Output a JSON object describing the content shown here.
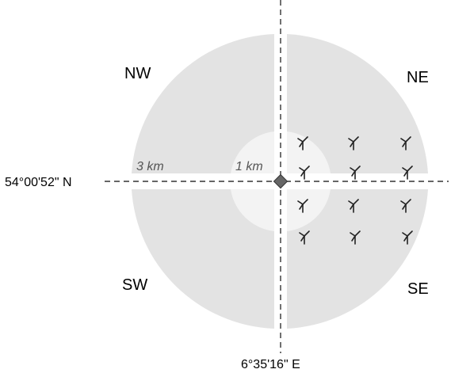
{
  "labels": {
    "nw": "NW",
    "ne": "NE",
    "sw": "SW",
    "se": "SE",
    "latitude": "54°00'52\" N",
    "longitude": "6°35'16\" E",
    "outer_radius": "3 km",
    "inner_radius": "1 km"
  },
  "turbines": {
    "rows": 4,
    "columns": 3,
    "count": 12,
    "icon": "wind-turbine-icon"
  },
  "colors": {
    "outer_ring": "#e3e3e3",
    "inner_circle": "#f3f3f3",
    "axis_line": "#333333",
    "center_marker": "#666666",
    "turbine": "#222222"
  }
}
